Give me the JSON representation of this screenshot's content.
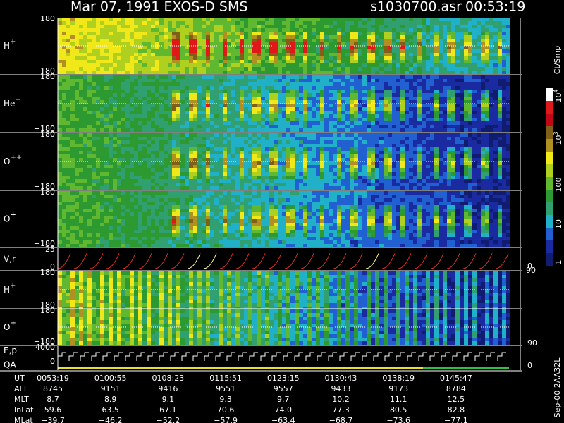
{
  "header": {
    "title": "Mar 07, 1991   EXOS-D SMS",
    "file": "s1030700.asr",
    "time": "00:53:19"
  },
  "panels": [
    {
      "label": "H",
      "charge": "+",
      "top": "180",
      "bottom": "−180"
    },
    {
      "label": "He",
      "charge": "+",
      "top": "180",
      "bottom": "−180"
    },
    {
      "label": "O",
      "charge": "++",
      "top": "180",
      "bottom": "−180"
    },
    {
      "label": "O",
      "charge": "+",
      "top": "180",
      "bottom": "−180"
    },
    {
      "label": "V,r",
      "top": "25",
      "bottom": "0",
      "right_top": "90",
      "right_bottom": "0"
    },
    {
      "label": "H",
      "charge": "+",
      "top": "180",
      "bottom": "−180"
    },
    {
      "label": "O",
      "charge": "+",
      "top": "180",
      "bottom": "−180",
      "right_bottom": "90"
    },
    {
      "label": "E,p",
      "label2": "QA",
      "top": "4000",
      "bottom": "0",
      "right_bottom": "0"
    }
  ],
  "colorbar": {
    "unit": "Ct/Smp",
    "labels": [
      {
        "base": "10",
        "exp": "4"
      },
      {
        "base": "10",
        "exp": "3"
      },
      {
        "base": "100"
      },
      {
        "base": "10"
      },
      {
        "base": "1"
      }
    ]
  },
  "footer": "Sep-00 2AA32L",
  "ephemeris": [
    {
      "label": "UT",
      "values": [
        "0053:19",
        "0100:55",
        "0108:23",
        "0115:51",
        "0123:15",
        "0130:43",
        "0138:19",
        "0145:47"
      ]
    },
    {
      "label": "ALT",
      "values": [
        "8745",
        "9151",
        "9416",
        "9551",
        "9557",
        "9433",
        "9173",
        "8784"
      ]
    },
    {
      "label": "MLT",
      "values": [
        "8.7",
        "8.9",
        "9.1",
        "9.3",
        "9.7",
        "10.2",
        "11.1",
        "12.5"
      ]
    },
    {
      "label": "InLat",
      "values": [
        "59.6",
        "63.5",
        "67.1",
        "70.6",
        "74.0",
        "77.3",
        "80.5",
        "82.8"
      ]
    },
    {
      "label": "MLat",
      "values": [
        "−39.7",
        "−46.2",
        "−52.2",
        "−57.9",
        "−63.4",
        "−68.7",
        "−73.6",
        "−77.1"
      ]
    }
  ]
}
